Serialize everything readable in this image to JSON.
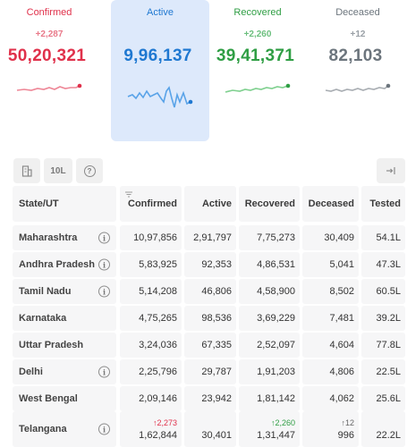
{
  "cards": {
    "confirmed": {
      "label": "Confirmed",
      "delta": "+2,287",
      "value": "50,20,321",
      "color": "#e0314b"
    },
    "active": {
      "label": "Active",
      "delta": "",
      "value": "9,96,137",
      "color": "#1f78d1"
    },
    "recovered": {
      "label": "Recovered",
      "delta": "+2,260",
      "value": "39,41,371",
      "color": "#2f9e44"
    },
    "deceased": {
      "label": "Deceased",
      "delta": "+12",
      "value": "82,103",
      "color": "#6c757d"
    }
  },
  "toolbar": {
    "ten_lakh": "10L",
    "info": "?"
  },
  "table": {
    "headers": {
      "state": "State/UT",
      "confirmed": "Confirmed",
      "active": "Active",
      "recovered": "Recovered",
      "deceased": "Deceased",
      "tested": "Tested"
    },
    "rows": [
      {
        "state": "Maharashtra",
        "info": true,
        "confirmed": "10,97,856",
        "active": "2,91,797",
        "recovered": "7,75,273",
        "deceased": "30,409",
        "tested": "54.1L"
      },
      {
        "state": "Andhra Pradesh",
        "info": true,
        "confirmed": "5,83,925",
        "active": "92,353",
        "recovered": "4,86,531",
        "deceased": "5,041",
        "tested": "47.3L"
      },
      {
        "state": "Tamil Nadu",
        "info": true,
        "confirmed": "5,14,208",
        "active": "46,806",
        "recovered": "4,58,900",
        "deceased": "8,502",
        "tested": "60.5L"
      },
      {
        "state": "Karnataka",
        "info": false,
        "confirmed": "4,75,265",
        "active": "98,536",
        "recovered": "3,69,229",
        "deceased": "7,481",
        "tested": "39.2L"
      },
      {
        "state": "Uttar Pradesh",
        "info": false,
        "confirmed": "3,24,036",
        "active": "67,335",
        "recovered": "2,52,097",
        "deceased": "4,604",
        "tested": "77.8L"
      },
      {
        "state": "Delhi",
        "info": true,
        "confirmed": "2,25,796",
        "active": "29,787",
        "recovered": "1,91,203",
        "deceased": "4,806",
        "tested": "22.5L"
      },
      {
        "state": "West Bengal",
        "info": false,
        "confirmed": "2,09,146",
        "active": "23,942",
        "recovered": "1,81,142",
        "deceased": "4,062",
        "tested": "25.6L"
      }
    ],
    "telangana": {
      "state": "Telangana",
      "info": true,
      "confirmed_delta": "↑2,273",
      "confirmed": "1,62,844",
      "active": "30,401",
      "recovered_delta": "↑2,260",
      "recovered": "1,31,447",
      "deceased_delta": "↑12",
      "deceased": "996",
      "tested": "22.2L"
    }
  }
}
